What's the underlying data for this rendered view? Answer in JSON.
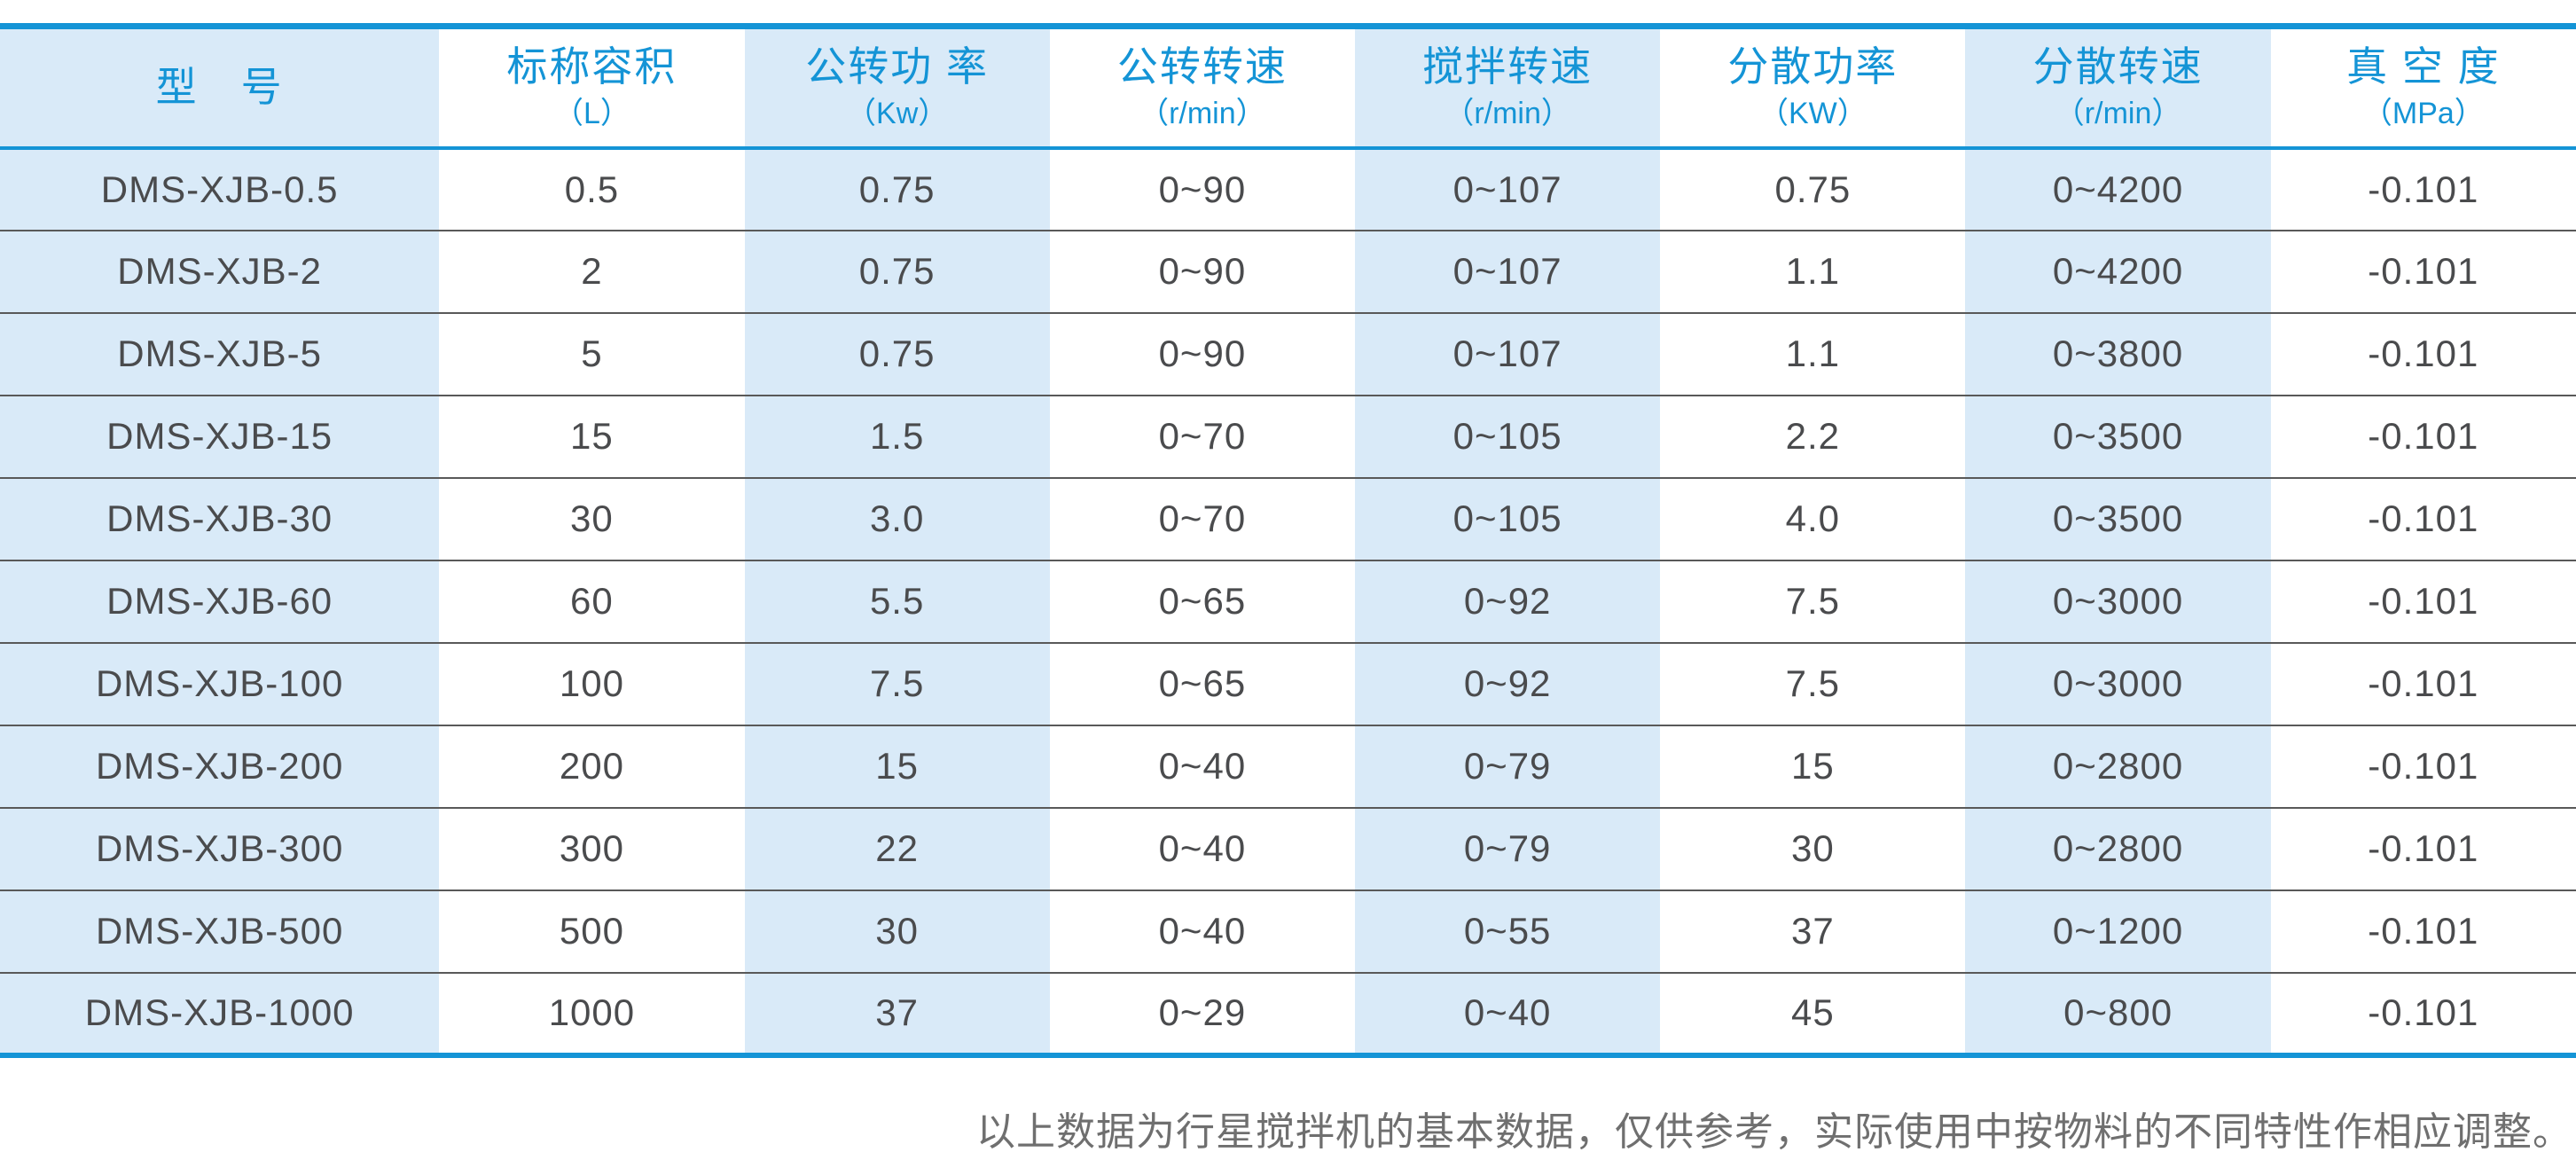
{
  "colors": {
    "accent_blue": "#1494d6",
    "stripe_blue": "#d9eaf8",
    "text_dark": "#4a4b4d",
    "row_divider": "#595959",
    "note_gray": "#6f6f6f"
  },
  "table": {
    "columns": [
      {
        "title": "型　号",
        "unit": ""
      },
      {
        "title": "标称容积",
        "unit": "（L）"
      },
      {
        "title": "公转功 率",
        "unit": "（Kw）"
      },
      {
        "title": "公转转速",
        "unit": "（r/min）"
      },
      {
        "title": "搅拌转速",
        "unit": "（r/min）"
      },
      {
        "title": "分散功率",
        "unit": "（KW）"
      },
      {
        "title": "分散转速",
        "unit": "（r/min）"
      },
      {
        "title": "真 空 度",
        "unit": "（MPa）"
      }
    ],
    "rows": [
      [
        "DMS-XJB-0.5",
        "0.5",
        "0.75",
        "0~90",
        "0~107",
        "0.75",
        "0~4200",
        "-0.101"
      ],
      [
        "DMS-XJB-2",
        "2",
        "0.75",
        "0~90",
        "0~107",
        "1.1",
        "0~4200",
        "-0.101"
      ],
      [
        "DMS-XJB-5",
        "5",
        "0.75",
        "0~90",
        "0~107",
        "1.1",
        "0~3800",
        "-0.101"
      ],
      [
        "DMS-XJB-15",
        "15",
        "1.5",
        "0~70",
        "0~105",
        "2.2",
        "0~3500",
        "-0.101"
      ],
      [
        "DMS-XJB-30",
        "30",
        "3.0",
        "0~70",
        "0~105",
        "4.0",
        "0~3500",
        "-0.101"
      ],
      [
        "DMS-XJB-60",
        "60",
        "5.5",
        "0~65",
        "0~92",
        "7.5",
        "0~3000",
        "-0.101"
      ],
      [
        "DMS-XJB-100",
        "100",
        "7.5",
        "0~65",
        "0~92",
        "7.5",
        "0~3000",
        "-0.101"
      ],
      [
        "DMS-XJB-200",
        "200",
        "15",
        "0~40",
        "0~79",
        "15",
        "0~2800",
        "-0.101"
      ],
      [
        "DMS-XJB-300",
        "300",
        "22",
        "0~40",
        "0~79",
        "30",
        "0~2800",
        "-0.101"
      ],
      [
        "DMS-XJB-500",
        "500",
        "30",
        "0~40",
        "0~55",
        "37",
        "0~1200",
        "-0.101"
      ],
      [
        "DMS-XJB-1000",
        "1000",
        "37",
        "0~29",
        "0~40",
        "45",
        "0~800",
        "-0.101"
      ]
    ]
  },
  "footer": {
    "note": "以上数据为行星搅拌机的基本数据，仅供参考，实际使用中按物料的不同特性作相应调整。"
  }
}
